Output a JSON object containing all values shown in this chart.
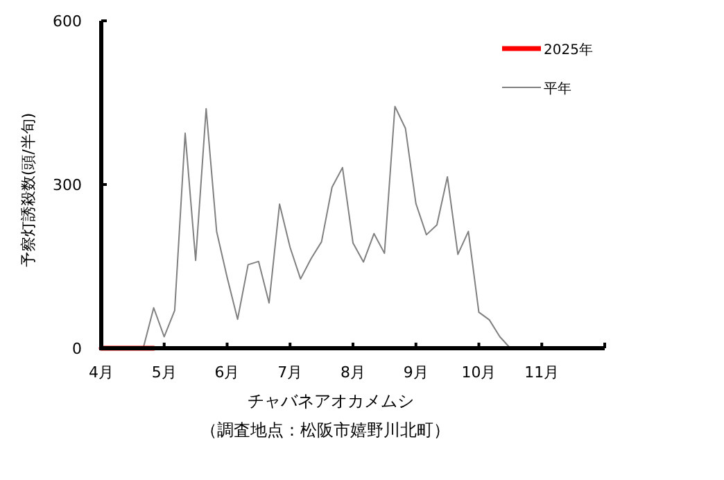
{
  "chart_data": {
    "type": "line",
    "xlabel": "チャバネアオカメムシ",
    "ylabel": "予察灯誘殺数(頭/半旬)",
    "annotations": [
      "（調査地点：松阪市嬉野川北町）"
    ],
    "categories": [
      "4月",
      null,
      null,
      null,
      null,
      null,
      "5月",
      null,
      null,
      null,
      null,
      null,
      "6月",
      null,
      null,
      null,
      null,
      null,
      "7月",
      null,
      null,
      null,
      null,
      null,
      "8月",
      null,
      null,
      null,
      null,
      null,
      "9月",
      null,
      null,
      null,
      null,
      null,
      "10月",
      null,
      null,
      null,
      null,
      null,
      "11月",
      null,
      null,
      null,
      null,
      null
    ],
    "series": [
      {
        "name": "2025年",
        "color": "#ff0000",
        "values": [
          0,
          0,
          0,
          0,
          0,
          0,
          null,
          null,
          null,
          null,
          null,
          null,
          null,
          null,
          null,
          null,
          null,
          null,
          null,
          null,
          null,
          null,
          null,
          null,
          null,
          null,
          null,
          null,
          null,
          null,
          null,
          null,
          null,
          null,
          null,
          null,
          null,
          null,
          null,
          null,
          null,
          null,
          null,
          null,
          null,
          null,
          null,
          null
        ]
      },
      {
        "name": "平年",
        "color": "#808080",
        "values": [
          0,
          0,
          0,
          0,
          0,
          74,
          21,
          69,
          394,
          161,
          439,
          214,
          130,
          53,
          153,
          159,
          83,
          264,
          185,
          127,
          164,
          195,
          295,
          331,
          193,
          158,
          210,
          174,
          443,
          403,
          265,
          208,
          226,
          314,
          172,
          214,
          66,
          52,
          21,
          0,
          0,
          0,
          0,
          0,
          0,
          0,
          0,
          0
        ]
      }
    ],
    "ylim": [
      0,
      600
    ],
    "yticks": [
      0,
      300,
      600
    ],
    "legend": "top right",
    "grid": false,
    "marker": "none",
    "line_style": "solid"
  }
}
